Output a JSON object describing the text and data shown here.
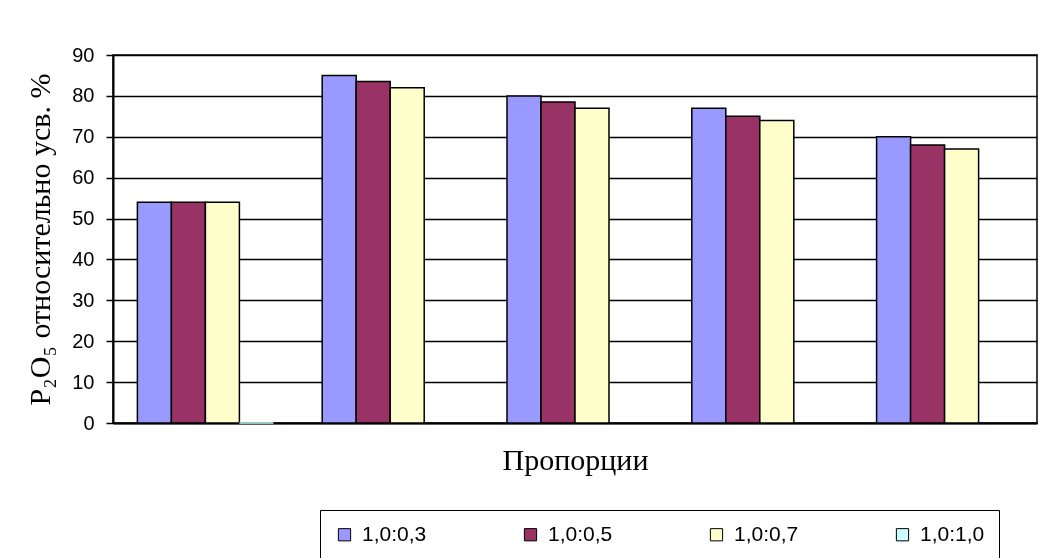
{
  "chart_data": {
    "type": "bar",
    "xlabel": "Пропорции",
    "ylabel": "P₂O₅ относительно усв. %",
    "categories": [
      null,
      null,
      null,
      null,
      null
    ],
    "series": [
      {
        "name": "1,0:0,3",
        "color": "#9999ff",
        "values": [
          54,
          85,
          80,
          77,
          70
        ]
      },
      {
        "name": "1,0:0,5",
        "color": "#993366",
        "values": [
          54,
          83.5,
          78.5,
          75,
          68
        ]
      },
      {
        "name": "1,0:0,7",
        "color": "#ffffcc",
        "values": [
          54,
          82,
          77,
          74,
          67
        ]
      },
      {
        "name": "1,0:1,0",
        "color": "#ccffff",
        "values": [
          0,
          null,
          null,
          null,
          null
        ]
      }
    ],
    "ylim": [
      0,
      90
    ],
    "yticks": [
      0,
      10,
      20,
      30,
      40,
      50,
      60,
      70,
      80,
      90
    ],
    "grid": "y",
    "legend": "bottom right",
    "tick_labels": "y"
  }
}
